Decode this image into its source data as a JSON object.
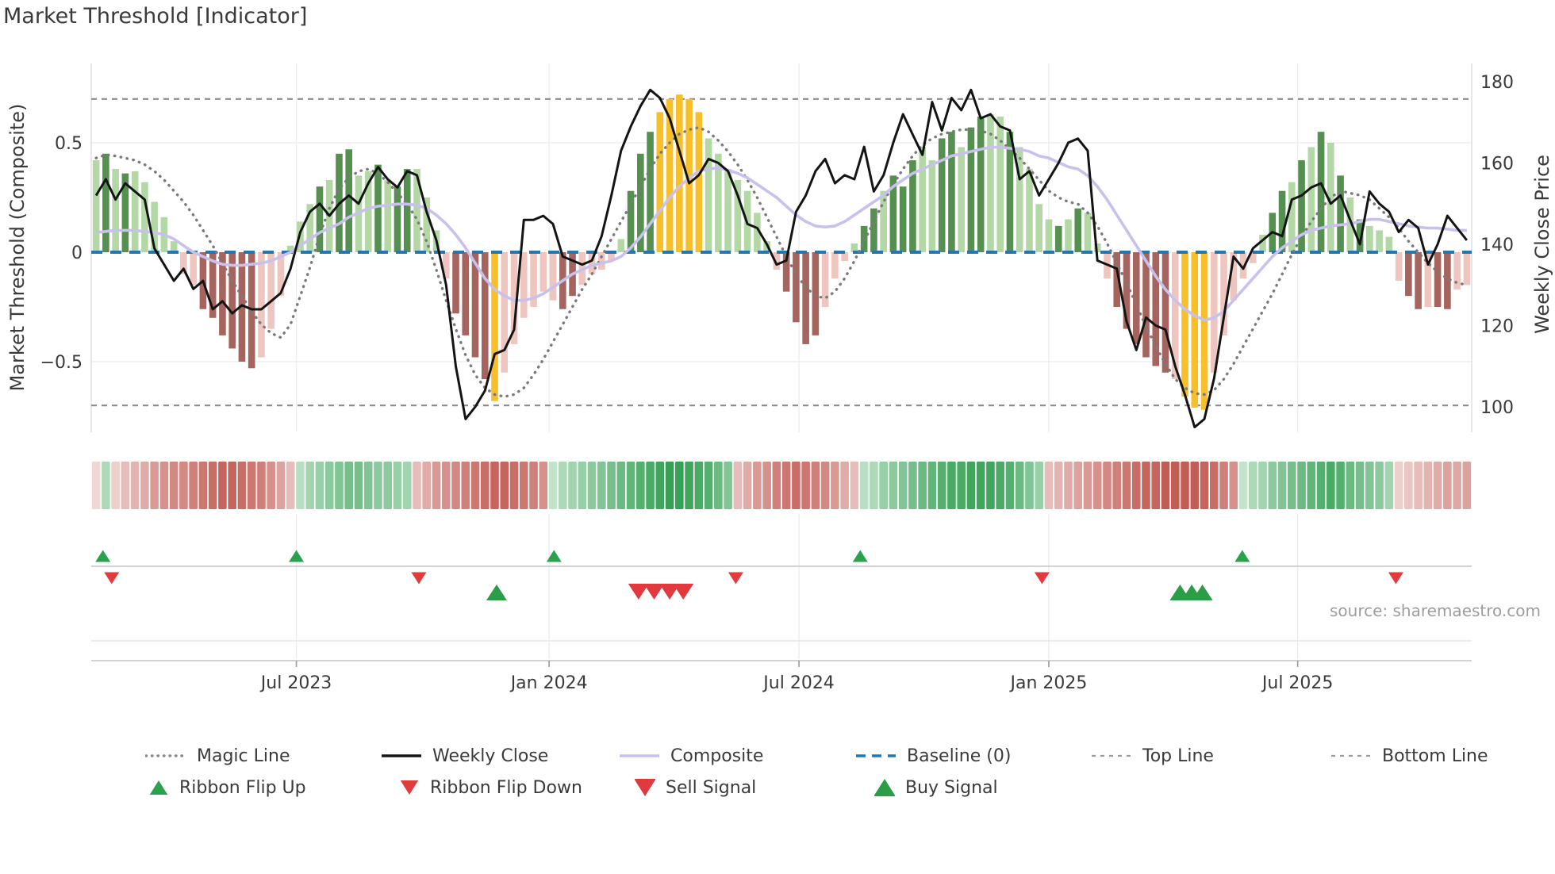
{
  "title": "Market Threshold [Indicator]",
  "source": "source: sharemaestro.com",
  "axes": {
    "left_label": "Market Threshold (Composite)",
    "right_label": "Weekly Close Price",
    "yticks_left": [
      {
        "label": "0.5",
        "v": 0.5
      },
      {
        "label": "0",
        "v": 0.0
      },
      {
        "label": "−0.5",
        "v": -0.5
      }
    ],
    "yticks_right": [
      {
        "label": "180",
        "p": 180
      },
      {
        "label": "160",
        "p": 160
      },
      {
        "label": "140",
        "p": 140
      },
      {
        "label": "120",
        "p": 120
      },
      {
        "label": "100",
        "p": 100
      }
    ],
    "xticks": [
      {
        "label": "Jul 2023",
        "week": 20.6
      },
      {
        "label": "Jan 2024",
        "week": 46.6
      },
      {
        "label": "Jul 2024",
        "week": 72.3
      },
      {
        "label": "Jan 2025",
        "week": 98.0
      },
      {
        "label": "Jul 2025",
        "week": 123.6
      }
    ]
  },
  "colors": {
    "bar_light_green": "#b3d8a6",
    "bar_dark_green": "#559051",
    "bar_light_red": "#efc5bf",
    "bar_dark_red": "#a5655e",
    "bar_gold": "#f7bf2a",
    "weekly_close": "#141414",
    "composite": "#c8c1ed",
    "magic": "#7a7a7a",
    "baseline": "#1f77b4",
    "band_lines": "#8c8c8c",
    "ribbon_green": "#2f9e4f",
    "ribbon_red": "#c05850",
    "signal_green": "#2a9d46",
    "signal_red": "#e0393e",
    "grid": "#ededf2",
    "spine": "#d8d8e0",
    "tick_text": "#3a3a3a"
  },
  "legend": {
    "row1": [
      {
        "label": "Magic Line",
        "swatch": {
          "kind": "dot-line",
          "color": "#8a8a8a"
        }
      },
      {
        "label": "Weekly Close",
        "swatch": {
          "kind": "solid",
          "color": "#141414"
        }
      },
      {
        "label": "Composite",
        "swatch": {
          "kind": "solid",
          "color": "#c8c1ed"
        }
      },
      {
        "label": "Baseline (0)",
        "swatch": {
          "kind": "dash-blue",
          "color": "#1f77b4"
        }
      },
      {
        "label": "Top Line",
        "swatch": {
          "kind": "dash-gray",
          "color": "#9a9a9a"
        }
      },
      {
        "label": "Bottom Line",
        "swatch": {
          "kind": "dash-gray",
          "color": "#9a9a9a"
        }
      }
    ],
    "row2": [
      {
        "label": "Ribbon Flip Up",
        "swatch": {
          "kind": "tri-up",
          "color": "#2aa14c",
          "size": 18
        }
      },
      {
        "label": "Ribbon Flip Down",
        "swatch": {
          "kind": "tri-down",
          "color": "#e13b3b",
          "size": 18
        }
      },
      {
        "label": "Sell Signal",
        "swatch": {
          "kind": "tri-down",
          "color": "#e0393e",
          "size": 22
        }
      },
      {
        "label": "Buy Signal",
        "swatch": {
          "kind": "tri-up",
          "color": "#2a9d46",
          "size": 22
        }
      }
    ]
  },
  "chart_data": {
    "type": "combo",
    "description": "Weekly market-threshold oscillator bars with weekly close price, composite and magic lines, ribbon heat strip and buy/sell/flip markers.",
    "n_weeks": 142,
    "ylim_left": [
      -0.82,
      0.86
    ],
    "ylim_right": [
      95,
      185
    ],
    "baseline": 0,
    "top_line": 0.7,
    "bottom_line": -0.7,
    "grid": true,
    "legend_position": "bottom",
    "bars": {
      "name": "Market Threshold (Composite)",
      "values": [
        0.42,
        0.45,
        0.38,
        0.36,
        0.37,
        0.32,
        0.23,
        0.16,
        0.05,
        -0.1,
        -0.15,
        -0.26,
        -0.3,
        -0.38,
        -0.44,
        -0.5,
        -0.53,
        -0.48,
        -0.35,
        -0.2,
        0.03,
        0.14,
        0.22,
        0.3,
        0.33,
        0.45,
        0.47,
        0.35,
        0.37,
        0.4,
        0.33,
        0.3,
        0.38,
        0.38,
        0.25,
        0.1,
        -0.12,
        -0.28,
        -0.38,
        -0.48,
        -0.58,
        -0.68,
        -0.55,
        -0.42,
        -0.3,
        -0.25,
        -0.18,
        -0.22,
        -0.26,
        -0.2,
        -0.15,
        -0.1,
        -0.08,
        -0.04,
        0.06,
        0.28,
        0.45,
        0.55,
        0.64,
        0.7,
        0.72,
        0.7,
        0.64,
        0.52,
        0.45,
        0.38,
        0.33,
        0.28,
        0.18,
        0.05,
        -0.08,
        -0.18,
        -0.32,
        -0.42,
        -0.38,
        -0.25,
        -0.12,
        -0.04,
        0.04,
        0.12,
        0.2,
        0.28,
        0.35,
        0.3,
        0.42,
        0.48,
        0.42,
        0.52,
        0.55,
        0.48,
        0.57,
        0.62,
        0.63,
        0.62,
        0.55,
        0.48,
        0.38,
        0.22,
        0.15,
        0.12,
        0.15,
        0.2,
        0.18,
        0.04,
        -0.12,
        -0.25,
        -0.35,
        -0.42,
        -0.48,
        -0.52,
        -0.55,
        -0.58,
        -0.66,
        -0.71,
        -0.72,
        -0.55,
        -0.38,
        -0.22,
        -0.12,
        -0.05,
        0.08,
        0.18,
        0.28,
        0.32,
        0.42,
        0.48,
        0.55,
        0.5,
        0.35,
        0.25,
        0.15,
        0.12,
        0.1,
        0.07,
        -0.13,
        -0.2,
        -0.26,
        -0.25,
        -0.25,
        -0.26,
        -0.17,
        -0.15
      ],
      "classes": [
        "lg",
        "dg",
        "lg",
        "dg",
        "lg",
        "lg",
        "lg",
        "lg",
        "lg",
        "lp",
        "lp",
        "dr",
        "dr",
        "dr",
        "dr",
        "dr",
        "dr",
        "lp",
        "lp",
        "lp",
        "lg",
        "lg",
        "lg",
        "dg",
        "lg",
        "dg",
        "dg",
        "lg",
        "lg",
        "dg",
        "lg",
        "dg",
        "dg",
        "lg",
        "lg",
        "lg",
        "lp",
        "dr",
        "dr",
        "dr",
        "dr",
        "au",
        "lp",
        "lp",
        "lp",
        "lp",
        "lp",
        "lp",
        "dr",
        "dr",
        "lp",
        "lp",
        "lp",
        "lp",
        "lg",
        "dg",
        "dg",
        "dg",
        "au",
        "au",
        "au",
        "au",
        "au",
        "lg",
        "lg",
        "lg",
        "lg",
        "lg",
        "lg",
        "lg",
        "lp",
        "dr",
        "dr",
        "dr",
        "dr",
        "lp",
        "lp",
        "lp",
        "lg",
        "dg",
        "dg",
        "lg",
        "dg",
        "dg",
        "dg",
        "lg",
        "lg",
        "dg",
        "dg",
        "lg",
        "dg",
        "dg",
        "lg",
        "lg",
        "dg",
        "lg",
        "lg",
        "lg",
        "lg",
        "dg",
        "lg",
        "dg",
        "lg",
        "lg",
        "lp",
        "dr",
        "dr",
        "dr",
        "dr",
        "dr",
        "dr",
        "lp",
        "au",
        "au",
        "au",
        "lp",
        "lp",
        "lp",
        "lp",
        "lp",
        "lg",
        "dg",
        "dg",
        "lg",
        "dg",
        "lg",
        "dg",
        "lg",
        "dg",
        "lg",
        "dg",
        "lg",
        "lg",
        "lg",
        "lp",
        "dr",
        "dr",
        "lp",
        "dr",
        "dr",
        "lp",
        "lp"
      ]
    },
    "weekly_close": {
      "name": "Weekly Close",
      "axis": "price",
      "values": [
        152,
        156,
        151,
        155,
        153,
        151,
        139,
        135,
        131,
        134,
        129,
        131,
        124,
        126,
        123,
        125,
        124,
        124,
        126,
        128,
        134,
        143,
        148,
        150,
        147,
        150,
        152,
        150,
        155,
        159,
        156,
        154,
        158,
        157,
        148,
        141,
        130,
        110,
        97,
        100,
        104,
        113,
        114,
        119,
        146,
        146,
        147,
        145,
        137,
        136,
        135,
        136,
        142,
        152,
        163,
        169,
        174,
        178,
        176,
        171,
        163,
        155,
        157,
        161,
        160,
        158,
        152,
        145,
        144,
        140,
        135,
        136,
        148,
        152,
        158,
        161,
        155,
        157,
        156,
        164,
        153,
        157,
        165,
        172,
        167,
        162,
        175,
        168,
        176,
        173,
        178,
        171,
        172,
        169,
        168,
        156,
        158,
        152,
        156,
        160,
        165,
        166,
        163,
        136,
        135,
        134,
        121,
        114,
        122,
        120,
        119,
        110,
        103,
        95,
        97,
        107,
        122,
        137,
        134,
        139,
        141,
        143,
        142,
        151,
        152,
        154,
        155,
        150,
        152,
        146,
        140,
        153,
        150,
        148,
        143,
        146,
        144,
        135,
        140,
        147,
        144,
        141
      ]
    },
    "composite": {
      "name": "Composite",
      "values": [
        0.09,
        0.095,
        0.1,
        0.1,
        0.1,
        0.095,
        0.09,
        0.08,
        0.06,
        0.03,
        0.0,
        -0.02,
        -0.04,
        -0.055,
        -0.06,
        -0.06,
        -0.055,
        -0.05,
        -0.04,
        -0.02,
        0.0,
        0.03,
        0.06,
        0.09,
        0.11,
        0.13,
        0.16,
        0.18,
        0.2,
        0.21,
        0.215,
        0.22,
        0.22,
        0.215,
        0.2,
        0.17,
        0.13,
        0.08,
        0.02,
        -0.05,
        -0.12,
        -0.17,
        -0.2,
        -0.22,
        -0.22,
        -0.21,
        -0.19,
        -0.16,
        -0.13,
        -0.1,
        -0.08,
        -0.06,
        -0.05,
        -0.04,
        -0.02,
        0.02,
        0.07,
        0.13,
        0.19,
        0.25,
        0.3,
        0.34,
        0.37,
        0.38,
        0.385,
        0.375,
        0.36,
        0.34,
        0.31,
        0.28,
        0.25,
        0.21,
        0.17,
        0.14,
        0.12,
        0.115,
        0.12,
        0.14,
        0.17,
        0.2,
        0.23,
        0.26,
        0.3,
        0.33,
        0.36,
        0.38,
        0.4,
        0.42,
        0.44,
        0.45,
        0.46,
        0.47,
        0.48,
        0.48,
        0.475,
        0.47,
        0.46,
        0.44,
        0.43,
        0.41,
        0.39,
        0.38,
        0.35,
        0.3,
        0.24,
        0.17,
        0.1,
        0.03,
        -0.04,
        -0.11,
        -0.17,
        -0.22,
        -0.26,
        -0.29,
        -0.31,
        -0.3,
        -0.27,
        -0.22,
        -0.17,
        -0.12,
        -0.07,
        -0.02,
        0.02,
        0.05,
        0.08,
        0.1,
        0.11,
        0.12,
        0.125,
        0.13,
        0.14,
        0.15,
        0.15,
        0.14,
        0.13,
        0.12,
        0.115,
        0.11,
        0.11,
        0.105,
        0.1,
        0.1
      ]
    },
    "magic": {
      "name": "Magic Line",
      "values": [
        0.43,
        0.445,
        0.44,
        0.43,
        0.42,
        0.4,
        0.37,
        0.33,
        0.28,
        0.23,
        0.17,
        0.1,
        0.03,
        -0.05,
        -0.13,
        -0.2,
        -0.27,
        -0.33,
        -0.37,
        -0.39,
        -0.33,
        -0.2,
        -0.07,
        0.08,
        0.2,
        0.29,
        0.34,
        0.37,
        0.38,
        0.36,
        0.32,
        0.27,
        0.22,
        0.15,
        0.05,
        -0.08,
        -0.22,
        -0.35,
        -0.47,
        -0.56,
        -0.62,
        -0.65,
        -0.66,
        -0.65,
        -0.62,
        -0.56,
        -0.49,
        -0.41,
        -0.33,
        -0.25,
        -0.17,
        -0.1,
        -0.02,
        0.06,
        0.14,
        0.22,
        0.3,
        0.38,
        0.45,
        0.5,
        0.54,
        0.56,
        0.57,
        0.55,
        0.51,
        0.46,
        0.4,
        0.33,
        0.25,
        0.16,
        0.07,
        -0.02,
        -0.1,
        -0.16,
        -0.2,
        -0.21,
        -0.18,
        -0.12,
        -0.04,
        0.05,
        0.14,
        0.23,
        0.31,
        0.38,
        0.44,
        0.49,
        0.52,
        0.54,
        0.55,
        0.56,
        0.56,
        0.555,
        0.54,
        0.51,
        0.47,
        0.43,
        0.38,
        0.33,
        0.28,
        0.25,
        0.23,
        0.22,
        0.18,
        0.12,
        0.04,
        -0.05,
        -0.14,
        -0.24,
        -0.34,
        -0.43,
        -0.51,
        -0.58,
        -0.62,
        -0.645,
        -0.65,
        -0.63,
        -0.58,
        -0.51,
        -0.43,
        -0.35,
        -0.27,
        -0.19,
        -0.1,
        -0.01,
        0.07,
        0.14,
        0.2,
        0.25,
        0.28,
        0.27,
        0.26,
        0.24,
        0.2,
        0.16,
        0.11,
        0.05,
        0.0,
        -0.05,
        -0.09,
        -0.12,
        -0.14,
        -0.15
      ]
    },
    "ribbon": {
      "name": "Ribbon",
      "values": [
        -0.15,
        0.3,
        -0.2,
        -0.3,
        -0.35,
        -0.4,
        -0.5,
        -0.55,
        -0.6,
        -0.6,
        -0.65,
        -0.7,
        -0.75,
        -0.8,
        -0.8,
        -0.75,
        -0.7,
        -0.65,
        -0.55,
        -0.45,
        -0.3,
        0.25,
        0.35,
        0.4,
        0.45,
        0.5,
        0.55,
        0.55,
        0.5,
        0.45,
        0.45,
        0.4,
        0.35,
        -0.3,
        -0.4,
        -0.5,
        -0.55,
        -0.6,
        -0.65,
        -0.7,
        -0.75,
        -0.8,
        -0.8,
        -0.75,
        -0.7,
        -0.65,
        -0.55,
        0.2,
        0.3,
        0.35,
        0.4,
        0.45,
        0.5,
        0.55,
        0.6,
        0.65,
        0.7,
        0.75,
        0.8,
        0.85,
        0.85,
        0.8,
        0.75,
        0.7,
        0.6,
        0.5,
        -0.3,
        -0.4,
        -0.5,
        -0.55,
        -0.65,
        -0.7,
        -0.75,
        -0.7,
        -0.65,
        -0.6,
        -0.5,
        -0.4,
        -0.3,
        0.25,
        0.3,
        0.4,
        0.45,
        0.5,
        0.55,
        0.6,
        0.65,
        0.7,
        0.75,
        0.75,
        0.8,
        0.8,
        0.8,
        0.75,
        0.7,
        0.6,
        0.5,
        0.4,
        -0.3,
        -0.35,
        -0.4,
        -0.45,
        -0.5,
        -0.55,
        -0.6,
        -0.65,
        -0.7,
        -0.75,
        -0.8,
        -0.8,
        -0.85,
        -0.85,
        -0.85,
        -0.85,
        -0.8,
        -0.75,
        -0.65,
        -0.55,
        0.2,
        0.3,
        0.35,
        0.45,
        0.5,
        0.55,
        0.6,
        0.65,
        0.7,
        0.75,
        0.7,
        0.6,
        0.55,
        0.5,
        0.45,
        0.35,
        -0.2,
        -0.25,
        -0.3,
        -0.35,
        -0.4,
        -0.45,
        -0.42,
        -0.45
      ]
    },
    "signals": {
      "ribbon_flip_up_weeks": [
        0.7,
        20.6,
        47.1,
        78.6,
        117.9
      ],
      "ribbon_flip_down_weeks": [
        1.6,
        33.2,
        65.8,
        97.3,
        133.7
      ],
      "buy_weeks": [
        41.2,
        111.5,
        112.7,
        113.8
      ],
      "sell_weeks": [
        55.8,
        57.4,
        59.0,
        60.4
      ]
    }
  }
}
